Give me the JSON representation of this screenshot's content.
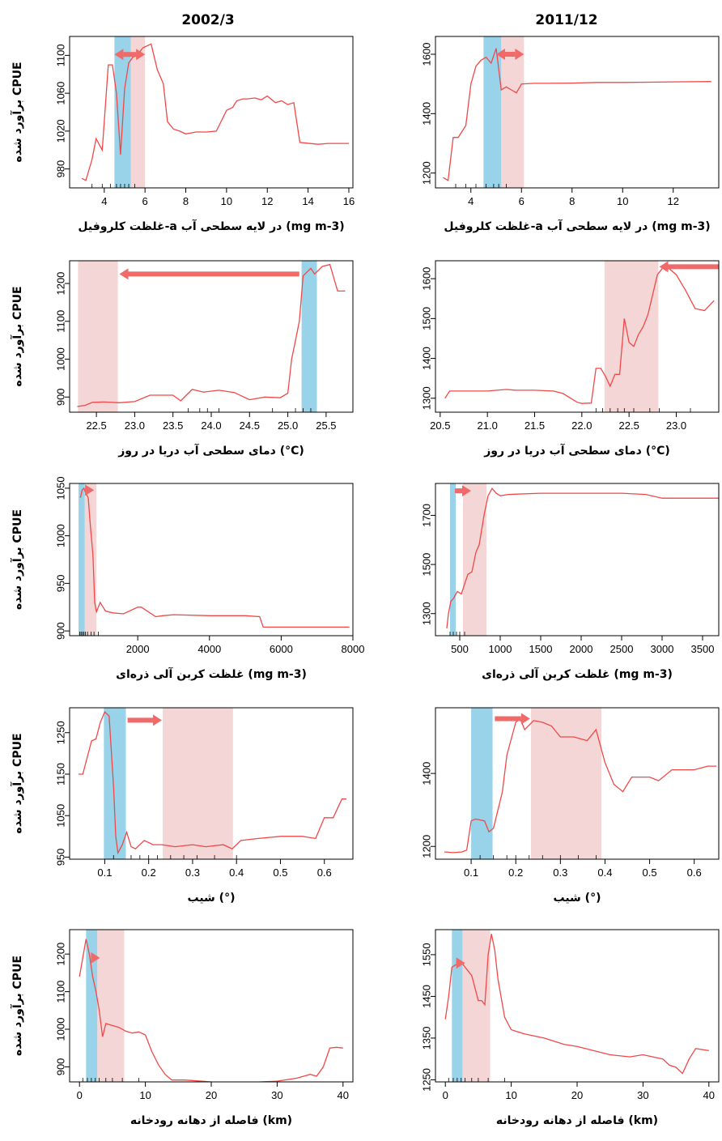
{
  "figure": {
    "col_titles": [
      "2002/3",
      "2011/12"
    ],
    "ylabel": "برآورد شده CPUE"
  },
  "colors": {
    "line": "#f04848",
    "blue_band": "#7ec8e3",
    "pink_band": "#f0c8c8",
    "arrow": "#f06a6a",
    "frame": "#000000"
  },
  "chart_data": [
    {
      "id": "chl-2002",
      "type": "line",
      "row": 0,
      "col": 0,
      "xlabel": "غلظت کلروفیل-a در لایه سطحی آب (mg m-3)",
      "xlim": [
        2.3,
        16.2
      ],
      "ylim": [
        960,
        1120
      ],
      "xticks": [
        4,
        6,
        8,
        10,
        12,
        14,
        16
      ],
      "yticks": [
        980,
        1020,
        1060,
        1100
      ],
      "blue_band": [
        4.5,
        5.3
      ],
      "pink_band": [
        5.3,
        6.0
      ],
      "arrow": {
        "from": 4.5,
        "to": 6.0,
        "y": 1101,
        "heads": "both"
      },
      "rug": [
        3.4,
        3.9,
        4.3,
        4.6,
        4.8,
        5.0,
        5.2,
        5.5
      ],
      "x": [
        2.9,
        3.1,
        3.4,
        3.6,
        3.9,
        4.2,
        4.4,
        4.6,
        4.8,
        5.0,
        5.2,
        5.4,
        5.6,
        5.9,
        6.3,
        6.6,
        6.9,
        7.1,
        7.4,
        7.7,
        8.0,
        8.5,
        9.0,
        9.5,
        10.0,
        10.3,
        10.5,
        10.8,
        11.0,
        11.4,
        11.7,
        12.0,
        12.4,
        12.7,
        13.0,
        13.3,
        13.6,
        14.5,
        15.0,
        16.0
      ],
      "y": [
        970,
        968,
        990,
        1012,
        1000,
        1090,
        1090,
        1060,
        995,
        1065,
        1092,
        1098,
        1100,
        1108,
        1112,
        1085,
        1070,
        1030,
        1022,
        1020,
        1017,
        1019,
        1019,
        1020,
        1042,
        1045,
        1052,
        1054,
        1054,
        1055,
        1053,
        1057,
        1050,
        1052,
        1048,
        1050,
        1008,
        1006,
        1007,
        1007
      ]
    },
    {
      "id": "chl-2011",
      "type": "line",
      "row": 0,
      "col": 1,
      "xlabel": "غلظت کلروفیل-a در لایه سطحی آب (mg m-3)",
      "xlim": [
        2.6,
        13.8
      ],
      "ylim": [
        1150,
        1660
      ],
      "xticks": [
        4,
        6,
        8,
        10,
        12
      ],
      "yticks": [
        1200,
        1400,
        1600
      ],
      "blue_band": [
        4.5,
        5.2
      ],
      "pink_band": [
        5.2,
        6.1
      ],
      "arrow": {
        "from": 5.0,
        "to": 6.1,
        "y": 1600,
        "heads": "both"
      },
      "rug": [
        3.4,
        3.8,
        4.2,
        4.6,
        4.9,
        5.1,
        5.4
      ],
      "x": [
        2.9,
        3.1,
        3.3,
        3.5,
        3.8,
        4.0,
        4.2,
        4.4,
        4.6,
        4.8,
        5.0,
        5.2,
        5.4,
        5.6,
        5.8,
        6.0,
        6.5,
        7.0,
        8.0,
        9.0,
        10.0,
        11.0,
        12.0,
        13.5
      ],
      "y": [
        1185,
        1175,
        1320,
        1320,
        1360,
        1500,
        1560,
        1580,
        1590,
        1570,
        1620,
        1480,
        1490,
        1480,
        1470,
        1500,
        1502,
        1502,
        1503,
        1505,
        1505,
        1506,
        1507,
        1508
      ]
    },
    {
      "id": "sst-2002",
      "type": "line",
      "row": 1,
      "col": 0,
      "xlabel": "دمای سطحی آب دریا در روز (°C)",
      "xlim": [
        22.15,
        25.85
      ],
      "ylim": [
        860,
        1260
      ],
      "xticks": [
        22.5,
        23.0,
        23.5,
        24.0,
        24.5,
        25.0,
        25.5
      ],
      "yticks": [
        900,
        1000,
        1100,
        1200
      ],
      "blue_band": [
        25.18,
        25.38
      ],
      "pink_band": [
        22.26,
        22.78
      ],
      "arrow": {
        "from": 25.15,
        "to": 22.8,
        "y": 1225,
        "heads": "end"
      },
      "rug": [
        23.7,
        23.85,
        23.95,
        24.1,
        24.8,
        25.1,
        25.2,
        25.3
      ],
      "x": [
        22.25,
        22.35,
        22.45,
        22.6,
        22.8,
        23.0,
        23.2,
        23.5,
        23.6,
        23.75,
        23.9,
        24.1,
        24.3,
        24.5,
        24.7,
        24.9,
        25.0,
        25.05,
        25.1,
        25.15,
        25.2,
        25.3,
        25.35,
        25.45,
        25.55,
        25.65,
        25.75
      ],
      "y": [
        875,
        878,
        886,
        887,
        885,
        888,
        905,
        905,
        890,
        920,
        913,
        918,
        912,
        893,
        900,
        898,
        910,
        1000,
        1050,
        1100,
        1220,
        1240,
        1225,
        1245,
        1250,
        1180,
        1180
      ]
    },
    {
      "id": "sst-2011",
      "type": "line",
      "row": 1,
      "col": 1,
      "xlabel": "دمای سطحی آب دریا در روز (°C)",
      "xlim": [
        20.45,
        23.45
      ],
      "ylim": [
        1265,
        1645
      ],
      "xticks": [
        20.5,
        21.0,
        21.5,
        22.0,
        22.5,
        23.0
      ],
      "yticks": [
        1300,
        1400,
        1500,
        1600
      ],
      "blue_band": null,
      "pink_band": [
        22.24,
        22.81
      ],
      "arrow": {
        "from": 23.45,
        "to": 22.82,
        "y": 1630,
        "heads": "end"
      },
      "rug": [
        22.15,
        22.22,
        22.3,
        22.38,
        22.45,
        22.55,
        22.72,
        22.82,
        23.15
      ],
      "x": [
        20.55,
        20.6,
        20.8,
        21.0,
        21.2,
        21.3,
        21.5,
        21.7,
        21.8,
        21.95,
        22.0,
        22.1,
        22.15,
        22.2,
        22.25,
        22.3,
        22.35,
        22.4,
        22.45,
        22.5,
        22.55,
        22.6,
        22.65,
        22.7,
        22.8,
        22.85,
        22.9,
        23.0,
        23.1,
        23.2,
        23.3,
        23.4
      ],
      "y": [
        1300,
        1318,
        1318,
        1318,
        1322,
        1320,
        1320,
        1318,
        1312,
        1290,
        1287,
        1288,
        1375,
        1375,
        1355,
        1330,
        1360,
        1360,
        1500,
        1440,
        1430,
        1460,
        1480,
        1510,
        1610,
        1625,
        1630,
        1610,
        1570,
        1525,
        1520,
        1545
      ]
    },
    {
      "id": "poc-2002",
      "type": "line",
      "row": 2,
      "col": 0,
      "xlabel": "غلظت کربن آلی ذره‌ای (mg m-3)",
      "xlim": [
        100,
        8000
      ],
      "ylim": [
        895,
        1055
      ],
      "xticks": [
        2000,
        4000,
        6000,
        8000
      ],
      "yticks": [
        900,
        950,
        1000,
        1050
      ],
      "blue_band": [
        350,
        520
      ],
      "pink_band": [
        520,
        850
      ],
      "arrow": {
        "from": 540,
        "to": 780,
        "y": 1048,
        "heads": "end"
      },
      "rug": [
        380,
        420,
        460,
        500,
        540,
        600,
        700,
        780,
        900
      ],
      "x": [
        400,
        450,
        500,
        550,
        620,
        680,
        750,
        800,
        850,
        950,
        1100,
        1300,
        1600,
        2000,
        2100,
        2500,
        2700,
        3000,
        4000,
        5000,
        5400,
        5500,
        6000,
        7000,
        7900
      ],
      "y": [
        1040,
        1048,
        1050,
        1045,
        1040,
        1010,
        980,
        930,
        920,
        930,
        921,
        919,
        918,
        925,
        925,
        915,
        916,
        917,
        916,
        916,
        915,
        904,
        904,
        904,
        904
      ]
    },
    {
      "id": "poc-2011",
      "type": "line",
      "row": 2,
      "col": 1,
      "xlabel": "غلظت کربن آلی ذره‌ای (mg m-3)",
      "xlim": [
        200,
        3700
      ],
      "ylim": [
        1210,
        1830
      ],
      "xticks": [
        500,
        1000,
        1500,
        2000,
        2500,
        3000,
        3500
      ],
      "yticks": [
        1300,
        1500,
        1700
      ],
      "blue_band": [
        380,
        450
      ],
      "pink_band": [
        540,
        830
      ],
      "arrow": {
        "from": 440,
        "to": 640,
        "y": 1800,
        "heads": "end"
      },
      "rug": [
        380,
        420,
        460,
        500,
        560
      ],
      "x": [
        340,
        360,
        390,
        420,
        470,
        520,
        560,
        600,
        650,
        700,
        740,
        800,
        850,
        900,
        950,
        1000,
        1100,
        1500,
        2000,
        2500,
        2800,
        3000,
        3700
      ],
      "y": [
        1240,
        1300,
        1350,
        1360,
        1390,
        1380,
        1420,
        1460,
        1470,
        1550,
        1580,
        1700,
        1780,
        1810,
        1790,
        1780,
        1785,
        1790,
        1790,
        1790,
        1785,
        1770,
        1770
      ]
    },
    {
      "id": "slope-2002",
      "type": "line",
      "row": 3,
      "col": 0,
      "xlabel": "شیب (°)",
      "xlim": [
        0.02,
        0.665
      ],
      "ylim": [
        945,
        1310
      ],
      "xticks": [
        0.1,
        0.2,
        0.3,
        0.4,
        0.5,
        0.6
      ],
      "yticks": [
        950,
        1050,
        1150,
        1250
      ],
      "blue_band": [
        0.098,
        0.148
      ],
      "pink_band": [
        0.232,
        0.392
      ],
      "arrow": {
        "from": 0.152,
        "to": 0.23,
        "y": 1280,
        "heads": "end"
      },
      "rug": [
        0.12,
        0.16,
        0.18,
        0.2,
        0.22,
        0.25,
        0.28,
        0.31,
        0.35,
        0.4
      ],
      "x": [
        0.04,
        0.05,
        0.07,
        0.08,
        0.09,
        0.1,
        0.11,
        0.12,
        0.125,
        0.13,
        0.14,
        0.15,
        0.16,
        0.17,
        0.19,
        0.21,
        0.23,
        0.26,
        0.3,
        0.33,
        0.37,
        0.39,
        0.41,
        0.45,
        0.5,
        0.55,
        0.58,
        0.6,
        0.62,
        0.64,
        0.65
      ],
      "y": [
        1150,
        1150,
        1230,
        1235,
        1275,
        1300,
        1290,
        1120,
        1000,
        960,
        980,
        1010,
        975,
        970,
        990,
        980,
        980,
        975,
        980,
        975,
        980,
        970,
        990,
        995,
        1000,
        1000,
        995,
        1045,
        1045,
        1090,
        1090
      ]
    },
    {
      "id": "slope-2011",
      "type": "line",
      "row": 3,
      "col": 1,
      "xlabel": "شیب (°)",
      "xlim": [
        0.02,
        0.655
      ],
      "ylim": [
        1165,
        1580
      ],
      "xticks": [
        0.1,
        0.2,
        0.3,
        0.4,
        0.5,
        0.6
      ],
      "yticks": [
        1200,
        1400
      ],
      "blue_band": [
        0.1,
        0.148
      ],
      "pink_band": [
        0.234,
        0.392
      ],
      "arrow": {
        "from": 0.153,
        "to": 0.232,
        "y": 1550,
        "heads": "end"
      },
      "rug": [
        0.12,
        0.15,
        0.18,
        0.2,
        0.23,
        0.26,
        0.3,
        0.34,
        0.38
      ],
      "x": [
        0.04,
        0.06,
        0.08,
        0.09,
        0.1,
        0.11,
        0.13,
        0.14,
        0.15,
        0.16,
        0.17,
        0.18,
        0.2,
        0.21,
        0.22,
        0.24,
        0.26,
        0.28,
        0.3,
        0.33,
        0.36,
        0.38,
        0.4,
        0.42,
        0.44,
        0.46,
        0.5,
        0.52,
        0.55,
        0.6,
        0.63,
        0.65
      ],
      "y": [
        1185,
        1183,
        1185,
        1190,
        1270,
        1275,
        1270,
        1240,
        1250,
        1300,
        1350,
        1450,
        1540,
        1550,
        1520,
        1545,
        1540,
        1530,
        1500,
        1500,
        1490,
        1520,
        1430,
        1370,
        1350,
        1390,
        1390,
        1380,
        1410,
        1410,
        1420,
        1420
      ]
    },
    {
      "id": "dist-2002",
      "type": "line",
      "row": 4,
      "col": 0,
      "xlabel": "فاصله از دهانه رودخانه (km)",
      "xlim": [
        -1.5,
        41.5
      ],
      "ylim": [
        860,
        1265
      ],
      "xticks": [
        0,
        10,
        20,
        30,
        40
      ],
      "yticks": [
        900,
        1000,
        1100,
        1200
      ],
      "blue_band": [
        1.0,
        2.7
      ],
      "pink_band": [
        2.7,
        6.8
      ],
      "arrow": {
        "from": 2.3,
        "to": 3.1,
        "y": 1190,
        "heads": "end"
      },
      "rug": [
        0.5,
        1.2,
        1.8,
        2.4,
        3.0,
        4.0,
        5.0,
        6.5,
        9.0
      ],
      "x": [
        0,
        1,
        1.5,
        2,
        2.5,
        3,
        3.5,
        4,
        5,
        6,
        7,
        8,
        9,
        10,
        11,
        12,
        13,
        14,
        16,
        20,
        25,
        30,
        33,
        35,
        36,
        37,
        38,
        39,
        40
      ],
      "y": [
        1140,
        1240,
        1200,
        1140,
        1100,
        1050,
        980,
        1015,
        1010,
        1005,
        995,
        990,
        993,
        985,
        940,
        905,
        880,
        865,
        865,
        860,
        858,
        862,
        870,
        880,
        875,
        900,
        950,
        952,
        950
      ]
    },
    {
      "id": "dist-2011",
      "type": "line",
      "row": 4,
      "col": 1,
      "xlabel": "فاصله از دهانه رودخانه (km)",
      "xlim": [
        -1.5,
        41.5
      ],
      "ylim": [
        1245,
        1610
      ],
      "xticks": [
        0,
        10,
        20,
        30,
        40
      ],
      "yticks": [
        1250,
        1350,
        1450,
        1550
      ],
      "blue_band": [
        1.0,
        2.6
      ],
      "pink_band": [
        2.6,
        6.8
      ],
      "arrow": {
        "from": 2.2,
        "to": 3.0,
        "y": 1530,
        "heads": "end"
      },
      "rug": [
        0.5,
        1.2,
        1.8,
        2.4,
        3.0,
        4.0,
        5.0,
        6.5,
        9.0
      ],
      "x": [
        0,
        0.5,
        1,
        1.5,
        2,
        2.5,
        3,
        4,
        5,
        5.5,
        6,
        6.5,
        7,
        7.5,
        8,
        9,
        10,
        12,
        15,
        18,
        20,
        25,
        28,
        30,
        33,
        34,
        35,
        36,
        37,
        38,
        40
      ],
      "y": [
        1395,
        1450,
        1520,
        1525,
        1530,
        1530,
        1520,
        1500,
        1440,
        1440,
        1430,
        1550,
        1600,
        1560,
        1490,
        1400,
        1370,
        1360,
        1350,
        1335,
        1330,
        1310,
        1305,
        1310,
        1300,
        1285,
        1280,
        1265,
        1300,
        1325,
        1320
      ]
    }
  ]
}
